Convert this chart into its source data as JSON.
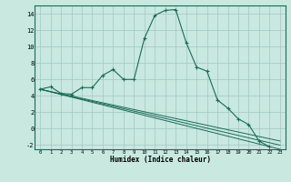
{
  "title": "",
  "xlabel": "Humidex (Indice chaleur)",
  "bg_color": "#c8e8e0",
  "grid_color": "#a0c8be",
  "line_color": "#1a6b5a",
  "xlim": [
    -0.5,
    23.5
  ],
  "ylim": [
    -2.5,
    15.0
  ],
  "xticks": [
    0,
    1,
    2,
    3,
    4,
    5,
    6,
    7,
    8,
    9,
    10,
    11,
    12,
    13,
    14,
    15,
    16,
    17,
    18,
    19,
    20,
    21,
    22,
    23
  ],
  "yticks": [
    -2,
    0,
    2,
    4,
    6,
    8,
    10,
    12,
    14
  ],
  "series_main": {
    "x": [
      0,
      1,
      2,
      3,
      4,
      5,
      6,
      7,
      8,
      9,
      10,
      11,
      12,
      13,
      14,
      15,
      16,
      17,
      18,
      19,
      20,
      21,
      22
    ],
    "y": [
      4.8,
      5.1,
      4.3,
      4.2,
      5.0,
      5.0,
      6.5,
      7.2,
      6.0,
      6.0,
      11.0,
      13.8,
      14.4,
      14.5,
      10.5,
      7.5,
      7.0,
      3.5,
      2.5,
      1.2,
      0.5,
      -1.5,
      -2.2
    ]
  },
  "series_lines": [
    {
      "x": [
        0,
        23
      ],
      "y": [
        4.8,
        -2.5
      ]
    },
    {
      "x": [
        0,
        23
      ],
      "y": [
        4.8,
        -2.0
      ]
    },
    {
      "x": [
        0,
        23
      ],
      "y": [
        4.8,
        -1.5
      ]
    }
  ]
}
